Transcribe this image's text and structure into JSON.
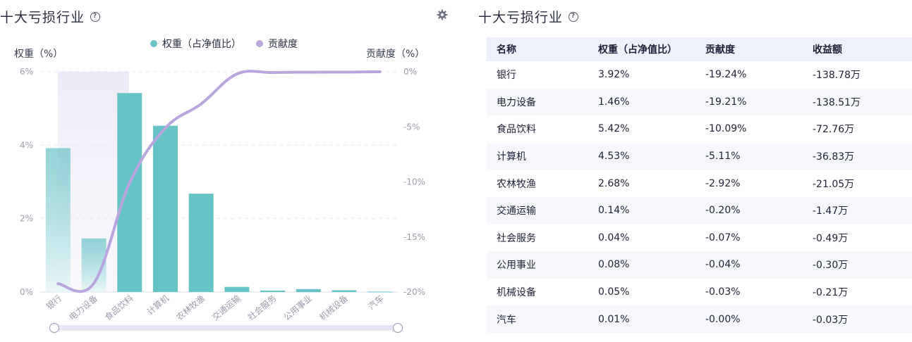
{
  "left_panel": {
    "title": "十大亏损行业",
    "help_icon": "?"
  },
  "right_panel": {
    "title": "十大亏损行业",
    "help_icon": "?"
  },
  "settings_icon": "gear-icon",
  "chart_data": {
    "type": "bar+line",
    "categories": [
      "银行",
      "电力设备",
      "食品饮料",
      "计算机",
      "农林牧渔",
      "交通运输",
      "社会服务",
      "公用事业",
      "机械设备",
      "汽车"
    ],
    "series": [
      {
        "name": "权重（占净值比）",
        "type": "bar",
        "axis": "left",
        "color": "#66c4c6",
        "values": [
          3.92,
          1.46,
          5.42,
          4.53,
          2.68,
          0.14,
          0.04,
          0.08,
          0.05,
          0.01
        ]
      },
      {
        "name": "贡献度",
        "type": "line",
        "axis": "right",
        "color": "#b9a6de",
        "values": [
          -19.24,
          -19.21,
          -10.09,
          -5.11,
          -2.92,
          -0.2,
          -0.07,
          -0.04,
          -0.03,
          -0.0
        ]
      }
    ],
    "ylabel_left": "权重（%）",
    "ylabel_right": "贡献度（%）",
    "left_ticks": [
      "6%",
      "4%",
      "2%",
      "0%"
    ],
    "right_ticks": [
      "0%",
      "-5%",
      "-10%",
      "-15%",
      "-20%"
    ],
    "ylim_left": [
      0,
      6
    ],
    "ylim_right": [
      -20,
      0
    ],
    "legend_position": "top-center",
    "grid": "dashed-horizontal"
  },
  "table": {
    "headers": [
      "名称",
      "权重（占净值比）",
      "贡献度",
      "收益额"
    ],
    "rows": [
      [
        "银行",
        "3.92%",
        "-19.24%",
        "-138.78万"
      ],
      [
        "电力设备",
        "1.46%",
        "-19.21%",
        "-138.51万"
      ],
      [
        "食品饮料",
        "5.42%",
        "-10.09%",
        "-72.76万"
      ],
      [
        "计算机",
        "4.53%",
        "-5.11%",
        "-36.83万"
      ],
      [
        "农林牧渔",
        "2.68%",
        "-2.92%",
        "-21.05万"
      ],
      [
        "交通运输",
        "0.14%",
        "-0.20%",
        "-1.47万"
      ],
      [
        "社会服务",
        "0.04%",
        "-0.07%",
        "-0.49万"
      ],
      [
        "公用事业",
        "0.08%",
        "-0.04%",
        "-0.30万"
      ],
      [
        "机械设备",
        "0.05%",
        "-0.03%",
        "-0.21万"
      ],
      [
        "汽车",
        "0.01%",
        "-0.00%",
        "-0.03万"
      ]
    ]
  }
}
